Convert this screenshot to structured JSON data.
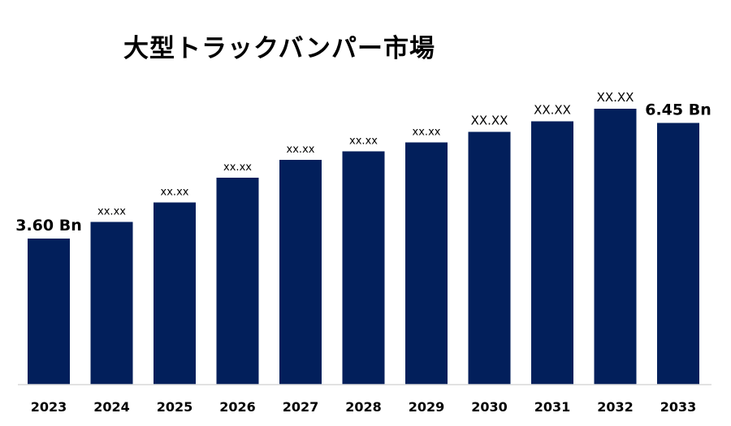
{
  "chart_data": {
    "type": "bar",
    "title": "大型トラックバンパー市場",
    "xlabel": "",
    "ylabel": "",
    "categories": [
      "2023",
      "2024",
      "2025",
      "2026",
      "2027",
      "2028",
      "2029",
      "2030",
      "2031",
      "2032",
      "2033"
    ],
    "values": [
      3.6,
      4.01,
      4.49,
      5.1,
      5.54,
      5.75,
      5.97,
      6.23,
      6.49,
      6.8,
      6.45
    ],
    "data_labels": [
      "3.60 Bn",
      "xx.xx",
      "xx.xx",
      "xx.xx",
      "xx.xx",
      "xx.xx",
      "xx.xx",
      "XX.XX",
      "XX.XX",
      "XX.XX",
      "6.45 Bn"
    ],
    "ylim": [
      0,
      8.0
    ],
    "grid": false,
    "legend": "none",
    "bar_color": "#021f5b",
    "axis_color": "#d9d9d9"
  }
}
